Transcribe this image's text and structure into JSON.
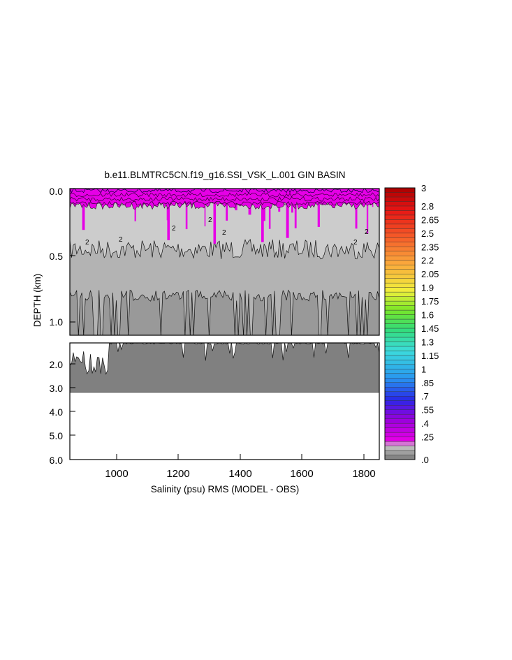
{
  "title": "b.e11.BLMTRC5CN.f19_g16.SSI_VSK_L.001 GIN BASIN",
  "chart_data": {
    "type": "heatmap",
    "title": "b.e11.BLMTRC5CN.f19_g16.SSI_VSK_L.001 GIN BASIN",
    "xlabel": "Salinity (psu) RMS (MODEL - OBS)",
    "ylabel": "DEPTH (km)",
    "xlim": [
      850,
      1850
    ],
    "x_ticks": [
      "1000",
      "1200",
      "1400",
      "1600",
      "1800"
    ],
    "panels": [
      {
        "name": "upper",
        "ylim": [
          0.0,
          1.1
        ],
        "y_ticks": [
          "0.0",
          "0.5",
          "1.0"
        ]
      },
      {
        "name": "lower",
        "ylim": [
          1.5,
          6.0
        ],
        "y_ticks": [
          "2.0",
          "3.0",
          "4.0",
          "5.0",
          "6.0"
        ]
      }
    ],
    "colorbar": {
      "range": [
        0.0,
        3.0
      ],
      "labels": [
        "3",
        "2.8",
        "2.65",
        "2.5",
        "2.35",
        "2.2",
        "2.05",
        "1.9",
        "1.75",
        "1.6",
        "1.45",
        "1.3",
        "1.15",
        "1",
        ".85",
        ".7",
        ".55",
        ".4",
        ".25",
        ".0"
      ]
    },
    "contour_labels": [
      "2",
      "2",
      "2",
      "2",
      "2",
      "2",
      "2"
    ],
    "field_summary": {
      "surface_layer_max_depth_km": 0.15,
      "gray_band_1_max_depth_km": 0.55,
      "gray_band_2_max_depth_km": 0.95,
      "data_bottom_depth_km": 3.4
    },
    "colors": {
      "surface": "#e600e6",
      "band_light": "#cccccc",
      "band_mid": "#b3b3b3",
      "band_dark": "#999999",
      "band_darkest": "#808080"
    }
  }
}
